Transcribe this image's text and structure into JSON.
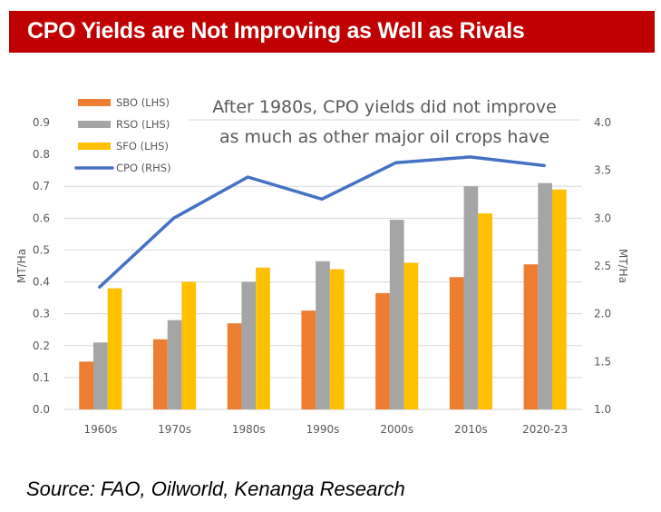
{
  "header": {
    "title": "CPO Yields are Not Improving as Well as Rivals",
    "banner_color": "#c00000"
  },
  "footer": {
    "source": "Source: FAO, Oilworld, Kenanga Research"
  },
  "chart_data": {
    "type": "bar",
    "title": "CPO Yields are Not Improving as Well as Rivals",
    "annotation": [
      "After 1980s, CPO yields did not improve",
      "as much as other major oil crops have"
    ],
    "categories": [
      "1960s",
      "1970s",
      "1980s",
      "1990s",
      "2000s",
      "2010s",
      "2020-23"
    ],
    "series": [
      {
        "name": "SBO (LHS)",
        "type": "bar",
        "axis": "left",
        "color": "#ed7d31",
        "values": [
          0.15,
          0.22,
          0.27,
          0.31,
          0.365,
          0.415,
          0.455
        ]
      },
      {
        "name": "RSO (LHS)",
        "type": "bar",
        "axis": "left",
        "color": "#a5a5a5",
        "values": [
          0.21,
          0.28,
          0.4,
          0.465,
          0.595,
          0.7,
          0.71
        ]
      },
      {
        "name": "SFO (LHS)",
        "type": "bar",
        "axis": "left",
        "color": "#ffc000",
        "values": [
          0.38,
          0.4,
          0.445,
          0.44,
          0.46,
          0.615,
          0.69
        ]
      },
      {
        "name": "CPO (RHS)",
        "type": "line",
        "axis": "right",
        "color": "#4472c4",
        "values": [
          2.28,
          3.0,
          3.43,
          3.2,
          3.58,
          3.64,
          3.55
        ]
      }
    ],
    "ylabel": "MT/Ha",
    "ylim": [
      0.0,
      0.9
    ],
    "yticks": [
      "0.0",
      "0.1",
      "0.2",
      "0.3",
      "0.4",
      "0.5",
      "0.6",
      "0.7",
      "0.8",
      "0.9"
    ],
    "y2label": "MT/Ha",
    "y2lim": [
      1.0,
      4.0
    ],
    "y2ticks": [
      "1.0",
      "1.5",
      "2.0",
      "2.5",
      "3.0",
      "3.5",
      "4.0"
    ],
    "xlabel": "",
    "grid": true,
    "legend": "top-left"
  }
}
